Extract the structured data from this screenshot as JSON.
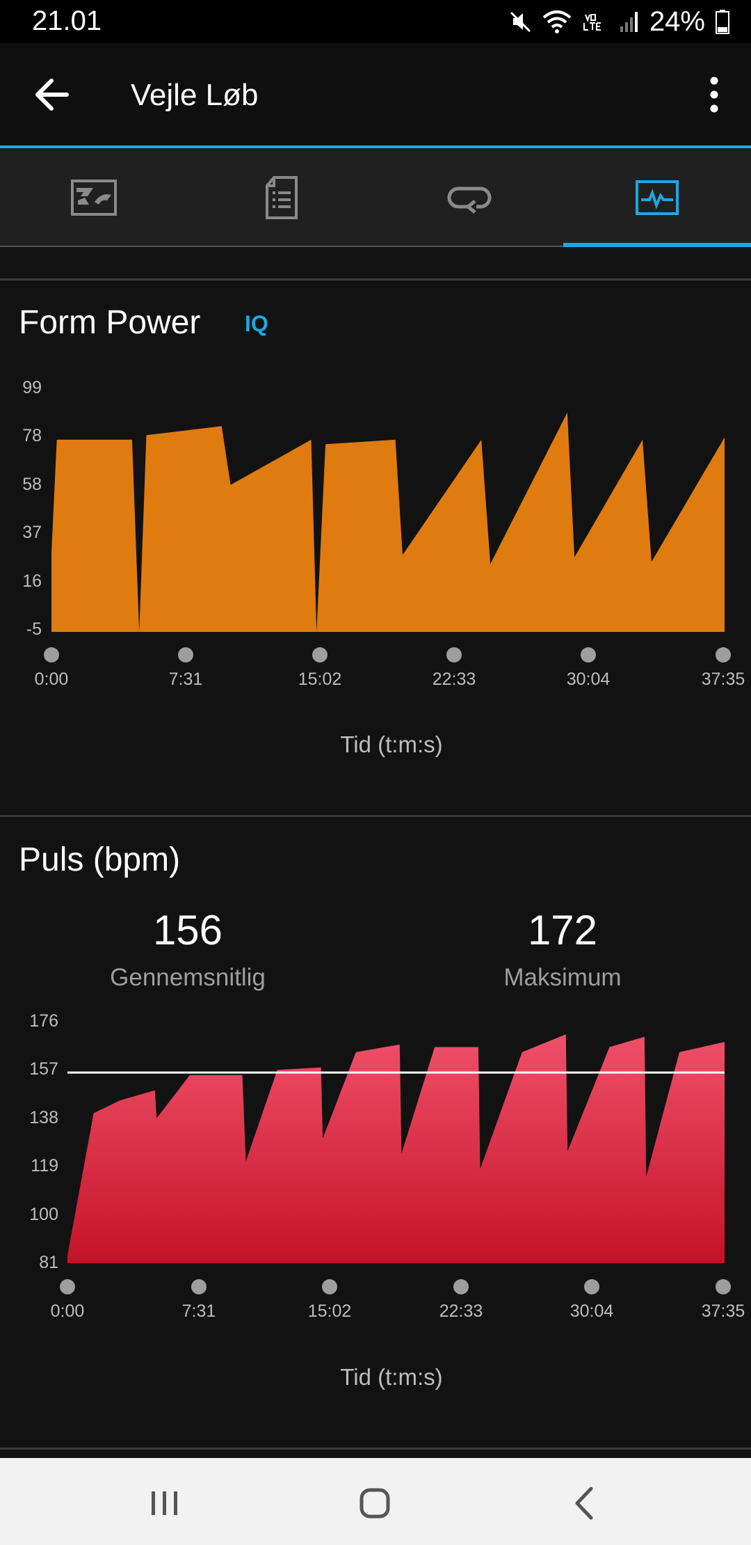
{
  "status_bar": {
    "time": "21.01",
    "battery": "24%"
  },
  "app_bar": {
    "title": "Vejle Løb"
  },
  "tabs": [
    {
      "icon": "summary-icon",
      "active": false
    },
    {
      "icon": "details-icon",
      "active": false
    },
    {
      "icon": "laps-icon",
      "active": false
    },
    {
      "icon": "charts-icon",
      "active": true
    }
  ],
  "colors": {
    "accent": "#1ea7e1",
    "form_power": "#e07b0f",
    "heart_rate_top": "#f0506a",
    "heart_rate_bottom": "#c41228"
  },
  "form_power": {
    "title": "Form Power",
    "badge": "IQ",
    "y_ticks": [
      "99",
      "78",
      "58",
      "37",
      "16",
      "-5"
    ],
    "x_ticks": [
      "0:00",
      "7:31",
      "15:02",
      "22:33",
      "30:04",
      "37:35"
    ],
    "axis_title": "Tid (t:m:s)"
  },
  "heart_rate": {
    "title": "Puls (bpm)",
    "average_value": "156",
    "average_label": "Gennemsnitlig",
    "max_value": "172",
    "max_label": "Maksimum",
    "y_ticks": [
      "176",
      "157",
      "138",
      "119",
      "100",
      "81"
    ],
    "x_ticks": [
      "0:00",
      "7:31",
      "15:02",
      "22:33",
      "30:04",
      "37:35"
    ],
    "axis_title": "Tid (t:m:s)"
  },
  "chart_data": [
    {
      "type": "area",
      "title": "Form Power",
      "xlabel": "Tid (t:m:s)",
      "ylabel": "",
      "ylim": [
        -5,
        99
      ],
      "xlim_minutes": [
        0,
        37.58
      ],
      "x_minutes": [
        0,
        0.3,
        4.5,
        4.9,
        5.3,
        9.5,
        10.0,
        14.5,
        14.8,
        15.3,
        19.2,
        19.6,
        24.0,
        24.5,
        28.8,
        29.2,
        33.0,
        33.5,
        37.58
      ],
      "y": [
        30,
        80,
        80,
        -5,
        82,
        86,
        60,
        80,
        -5,
        78,
        80,
        29,
        80,
        25,
        92,
        28,
        80,
        26,
        81
      ]
    },
    {
      "type": "area",
      "title": "Puls (bpm)",
      "xlabel": "Tid (t:m:s)",
      "ylabel": "",
      "ylim": [
        81,
        176
      ],
      "xlim_minutes": [
        0,
        37.58
      ],
      "average": 156,
      "maximum": 172,
      "x_minutes": [
        0,
        1.5,
        3.0,
        5.0,
        5.1,
        7.0,
        10.0,
        10.2,
        12.0,
        14.5,
        14.6,
        16.5,
        19.0,
        19.1,
        21.0,
        23.5,
        23.6,
        26.0,
        28.5,
        28.6,
        31.0,
        33.0,
        33.1,
        35.0,
        37.58
      ],
      "y": [
        84,
        140,
        145,
        149,
        138,
        155,
        155,
        121,
        157,
        158,
        130,
        164,
        167,
        124,
        166,
        166,
        118,
        164,
        171,
        125,
        166,
        170,
        115,
        164,
        168
      ]
    }
  ]
}
